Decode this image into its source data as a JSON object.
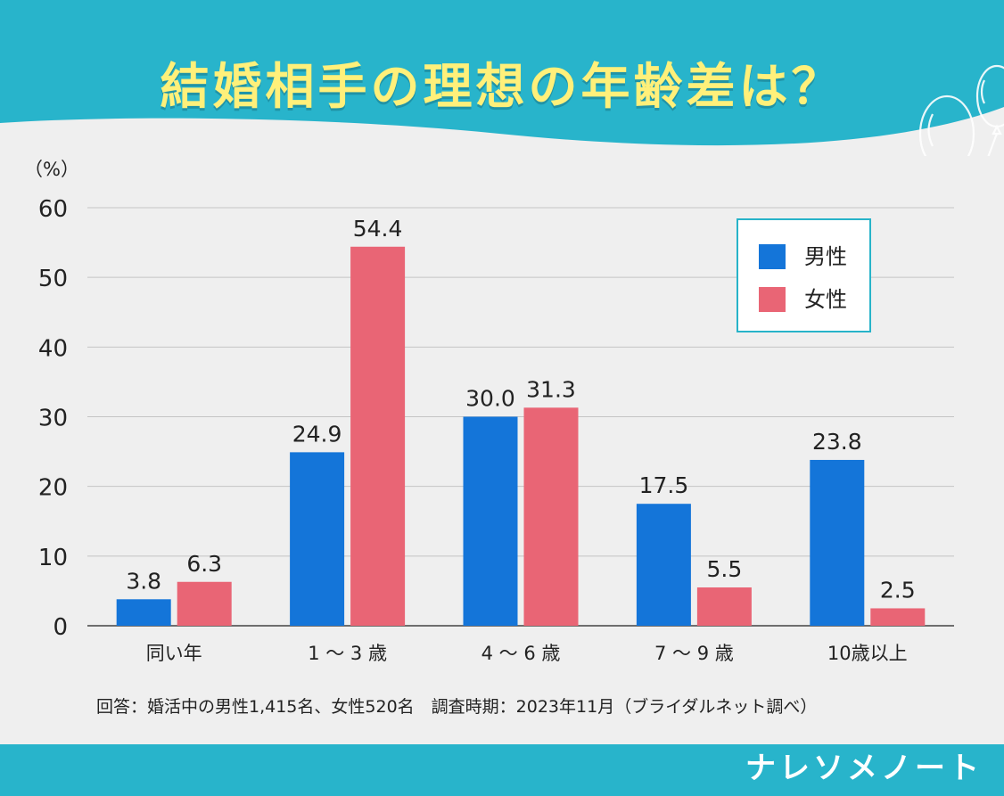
{
  "title": "結婚相手の理想の年齢差は？",
  "footnote": "回答：婚活中の男性1,415名、女性520名　調査時期：2023年11月（ブライダルネット調べ）",
  "brand": "ナレソメノート",
  "colors": {
    "header": "#28b4cb",
    "title": "#fff07a",
    "male": "#1475d9",
    "female": "#e96575",
    "legend_border": "#27b3c9",
    "grid": "#c4c4c4"
  },
  "chart_data": {
    "type": "bar",
    "categories": [
      "同い年",
      "1 ～ 3 歳",
      "4 ～ 6 歳",
      "7 ～ 9 歳",
      "10歳以上"
    ],
    "series": [
      {
        "name": "男性",
        "values": [
          3.8,
          24.9,
          30.0,
          17.5,
          23.8
        ],
        "labels": [
          "3.8",
          "24.9",
          "30.0",
          "17.5",
          "23.8"
        ]
      },
      {
        "name": "女性",
        "values": [
          6.3,
          54.4,
          31.3,
          5.5,
          2.5
        ],
        "labels": [
          "6.3",
          "54.4",
          "31.3",
          "5.5",
          "2.5"
        ]
      }
    ],
    "ylabel": "（%）",
    "ylim": [
      0,
      60
    ],
    "yticks": [
      0,
      10,
      20,
      30,
      40,
      50,
      60
    ],
    "legend_position": "top-right"
  }
}
